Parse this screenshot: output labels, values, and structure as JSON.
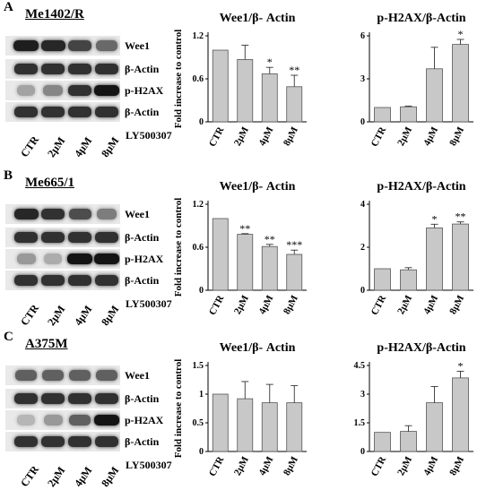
{
  "panels": [
    {
      "label": "A",
      "cell_line": "Me1402/R",
      "blot": {
        "lanes": [
          "CTR",
          "2μM",
          "4μM",
          "8μM"
        ],
        "drug": "LY500307",
        "rows": [
          {
            "label": "Wee1",
            "intensity": [
              0.95,
              0.9,
              0.75,
              0.55
            ]
          },
          {
            "label": "β-Actin",
            "intensity": [
              0.85,
              0.85,
              0.85,
              0.85
            ]
          },
          {
            "label": "p-H2AX",
            "intensity": [
              0.25,
              0.4,
              0.85,
              1.0
            ]
          },
          {
            "label": "β-Actin",
            "intensity": [
              0.85,
              0.85,
              0.85,
              0.85
            ]
          }
        ]
      }
    },
    {
      "label": "B",
      "cell_line": "Me665/1",
      "blot": {
        "lanes": [
          "CTR",
          "2μM",
          "4μM",
          "8μM"
        ],
        "drug": "LY500307",
        "rows": [
          {
            "label": "Wee1",
            "intensity": [
              0.9,
              0.85,
              0.7,
              0.45
            ]
          },
          {
            "label": "β-Actin",
            "intensity": [
              0.85,
              0.85,
              0.85,
              0.85
            ]
          },
          {
            "label": "p-H2AX",
            "intensity": [
              0.3,
              0.2,
              1.0,
              1.0
            ]
          },
          {
            "label": "β-Actin",
            "intensity": [
              0.85,
              0.85,
              0.85,
              0.85
            ]
          }
        ]
      }
    },
    {
      "label": "C",
      "cell_line": "A375M",
      "blot": {
        "lanes": [
          "CTR",
          "2μM",
          "4μM",
          "8μM"
        ],
        "drug": "LY500307",
        "rows": [
          {
            "label": "Wee1",
            "intensity": [
              0.6,
              0.6,
              0.6,
              0.6
            ]
          },
          {
            "label": "β-Actin",
            "intensity": [
              0.85,
              0.85,
              0.85,
              0.85
            ]
          },
          {
            "label": "p-H2AX",
            "intensity": [
              0.15,
              0.3,
              0.6,
              1.0
            ]
          },
          {
            "label": "β-Actin",
            "intensity": [
              0.85,
              0.85,
              0.85,
              0.85
            ]
          }
        ]
      }
    }
  ],
  "chart_data": [
    {
      "type": "bar",
      "panel": "A",
      "title": "Wee1/β- Actin",
      "ylabel": "Fold increase to control",
      "categories": [
        "CTR",
        "2μM",
        "4μM",
        "8μM"
      ],
      "values": [
        1.0,
        0.87,
        0.67,
        0.49
      ],
      "errors": [
        0,
        0.2,
        0.09,
        0.16
      ],
      "significance": [
        "",
        "",
        "*",
        "**"
      ],
      "ylim": [
        0,
        1.2
      ],
      "yticks": [
        "0",
        "0.6",
        "1.2"
      ],
      "ytick_values": [
        0,
        0.6,
        1.2
      ]
    },
    {
      "type": "bar",
      "panel": "A",
      "title": "p-H2AX/β-Actin",
      "ylabel": "",
      "categories": [
        "CTR",
        "2μM",
        "4μM",
        "8μM"
      ],
      "values": [
        1.0,
        1.05,
        3.7,
        5.4
      ],
      "errors": [
        0,
        0.05,
        1.5,
        0.35
      ],
      "significance": [
        "",
        "",
        "",
        "*"
      ],
      "ylim": [
        0,
        6
      ],
      "yticks": [
        "0",
        "3",
        "6"
      ],
      "ytick_values": [
        0,
        3,
        6
      ]
    },
    {
      "type": "bar",
      "panel": "B",
      "title": "Wee1/β- Actin",
      "ylabel": "Fold increase to control",
      "categories": [
        "CTR",
        "2μM",
        "4μM",
        "8μM"
      ],
      "values": [
        1.0,
        0.78,
        0.61,
        0.5
      ],
      "errors": [
        0,
        0.01,
        0.03,
        0.06
      ],
      "significance": [
        "",
        "**",
        "**",
        "***"
      ],
      "ylim": [
        0,
        1.2
      ],
      "yticks": [
        "0",
        "0.6",
        "1.2"
      ],
      "ytick_values": [
        0,
        0.6,
        1.2
      ]
    },
    {
      "type": "bar",
      "panel": "B",
      "title": "p-H2AX/β-Actin",
      "ylabel": "",
      "categories": [
        "CTR",
        "2μM",
        "4μM",
        "8μM"
      ],
      "values": [
        1.0,
        0.95,
        2.9,
        3.08
      ],
      "errors": [
        0,
        0.1,
        0.17,
        0.1
      ],
      "significance": [
        "",
        "",
        "*",
        "**"
      ],
      "ylim": [
        0,
        4
      ],
      "yticks": [
        "0",
        "2",
        "4"
      ],
      "ytick_values": [
        0,
        2,
        4
      ]
    },
    {
      "type": "bar",
      "panel": "C",
      "title": "Wee1/β- Actin",
      "ylabel": "Fold increase to control",
      "categories": [
        "CTR",
        "2μM",
        "4μM",
        "8μM"
      ],
      "values": [
        1.0,
        0.92,
        0.85,
        0.85
      ],
      "errors": [
        0,
        0.3,
        0.32,
        0.3
      ],
      "significance": [
        "",
        "",
        "",
        ""
      ],
      "ylim": [
        0,
        1.5
      ],
      "yticks": [
        "0",
        "0.5",
        "1",
        "1.5"
      ],
      "ytick_values": [
        0,
        0.5,
        1,
        1.5
      ]
    },
    {
      "type": "bar",
      "panel": "C",
      "title": "p-H2AX/β-Actin",
      "ylabel": "",
      "categories": [
        "CTR",
        "2μM",
        "4μM",
        "8μM"
      ],
      "values": [
        1.0,
        1.05,
        2.55,
        3.85
      ],
      "errors": [
        0,
        0.3,
        0.85,
        0.35
      ],
      "significance": [
        "",
        "",
        "",
        "*"
      ],
      "ylim": [
        0,
        4.5
      ],
      "yticks": [
        "0",
        "1.5",
        "3",
        "4.5"
      ],
      "ytick_values": [
        0,
        1.5,
        3,
        4.5
      ]
    }
  ]
}
